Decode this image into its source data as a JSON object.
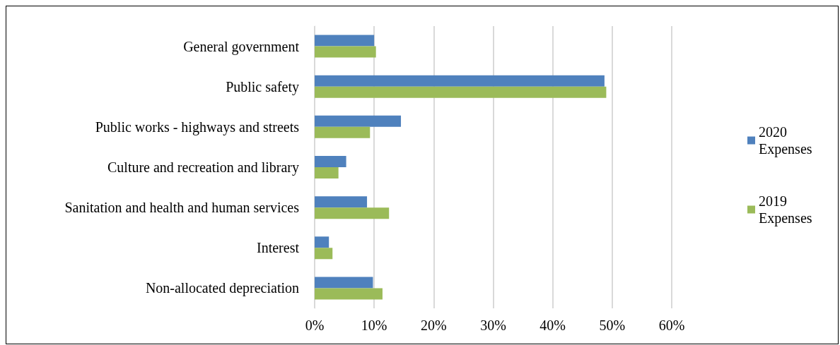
{
  "chart_data": {
    "type": "bar",
    "orientation": "horizontal",
    "categories": [
      "General government",
      "Public safety",
      "Public works - highways and streets",
      "Culture and recreation and library",
      "Sanitation and health and human services",
      "Interest",
      "Non-allocated depreciation"
    ],
    "series": [
      {
        "name": "2020 Expenses",
        "color": "#4f81bd",
        "values": [
          10.0,
          48.7,
          14.5,
          5.3,
          8.8,
          2.4,
          9.8
        ]
      },
      {
        "name": "2019 Expenses",
        "color": "#9bbb59",
        "values": [
          10.3,
          49.0,
          9.3,
          4.0,
          12.5,
          3.0,
          11.4
        ]
      }
    ],
    "xlim": [
      0,
      60
    ],
    "xticks": [
      {
        "value": 0,
        "label": "0%"
      },
      {
        "value": 10,
        "label": "10%"
      },
      {
        "value": 20,
        "label": "20%"
      },
      {
        "value": 30,
        "label": "30%"
      },
      {
        "value": 40,
        "label": "40%"
      },
      {
        "value": 50,
        "label": "50%"
      },
      {
        "value": 60,
        "label": "60%"
      }
    ],
    "grid": "x",
    "legend": "right"
  }
}
